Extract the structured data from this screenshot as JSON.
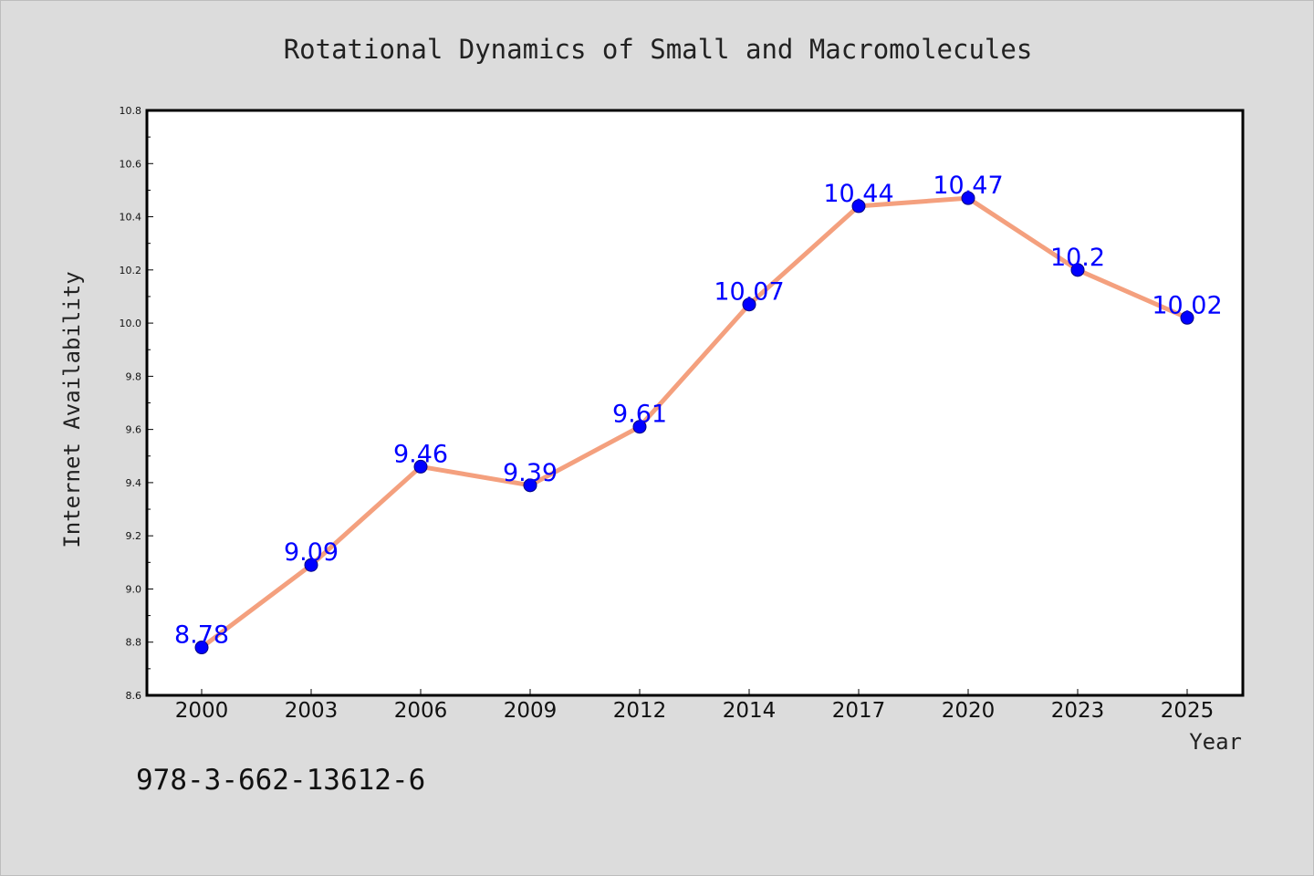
{
  "chart_data": {
    "type": "line",
    "title": "Rotational Dynamics of Small and Macromolecules",
    "xlabel": "Year",
    "ylabel": "Internet Availability",
    "categories": [
      "2000",
      "2003",
      "2006",
      "2009",
      "2012",
      "2014",
      "2017",
      "2020",
      "2023",
      "2025"
    ],
    "values": [
      8.78,
      9.09,
      9.46,
      9.39,
      9.61,
      10.07,
      10.44,
      10.47,
      10.2,
      10.02
    ],
    "data_labels": [
      "8.78",
      "9.09",
      "9.46",
      "9.39",
      "9.61",
      "10.07",
      "10.44",
      "10.47",
      "10.2",
      "10.02"
    ],
    "ylim": [
      8.6,
      10.8
    ],
    "yticks": [
      "8.6",
      "8.8",
      "9.0",
      "9.2",
      "9.4",
      "9.6",
      "9.8",
      "10.0",
      "10.2",
      "10.4",
      "10.6",
      "10.8"
    ],
    "grid": false,
    "legend": "none",
    "colors": {
      "line": "#f4a07e",
      "marker_fill": "#0000ff",
      "marker_stroke": "#000080",
      "data_label": "#0000ff",
      "background": "#dcdcdc",
      "plot_background": "#ffffff"
    }
  },
  "footer": {
    "isbn": "978-3-662-13612-6"
  }
}
